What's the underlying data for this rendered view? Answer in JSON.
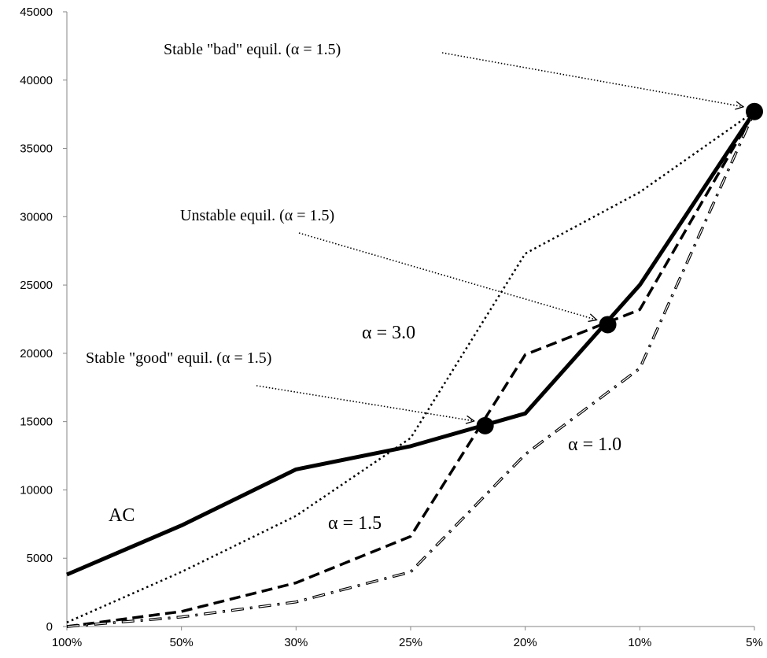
{
  "chart_data": {
    "type": "line",
    "categories": [
      "100%",
      "50%",
      "30%",
      "25%",
      "20%",
      "10%",
      "5%"
    ],
    "ylim": [
      0,
      45000
    ],
    "yticks": [
      0,
      5000,
      10000,
      15000,
      20000,
      25000,
      30000,
      35000,
      40000,
      45000
    ],
    "grid": false,
    "series": [
      {
        "name": "AC",
        "style": "solid",
        "values": [
          3800,
          7400,
          11500,
          13200,
          15600,
          25000,
          37700
        ]
      },
      {
        "name": "α = 3.0",
        "style": "dotted",
        "values": [
          300,
          4000,
          8100,
          13800,
          27300,
          31800,
          37700
        ]
      },
      {
        "name": "α = 1.5",
        "style": "dashed",
        "values": [
          0,
          1100,
          3200,
          6600,
          19900,
          23200,
          37700
        ]
      },
      {
        "name": "α = 1.0",
        "style": "dashdot",
        "values": [
          0,
          700,
          1800,
          4000,
          12600,
          18900,
          37700
        ]
      }
    ],
    "equilibria": [
      {
        "x": 3.65,
        "y": 14700
      },
      {
        "x": 4.72,
        "y": 22100
      },
      {
        "x": 6.0,
        "y": 37700
      }
    ],
    "annotations": [
      {
        "text": "Stable \"bad\" equil. (α = 1.5)",
        "points_to": 2
      },
      {
        "text": "Unstable equil. (α = 1.5)",
        "points_to": 1
      },
      {
        "text": "Stable \"good\" equil. (α = 1.5)",
        "points_to": 0
      }
    ],
    "series_labels": [
      "AC",
      "α = 3.0",
      "α = 1.5",
      "α = 1.0"
    ]
  }
}
